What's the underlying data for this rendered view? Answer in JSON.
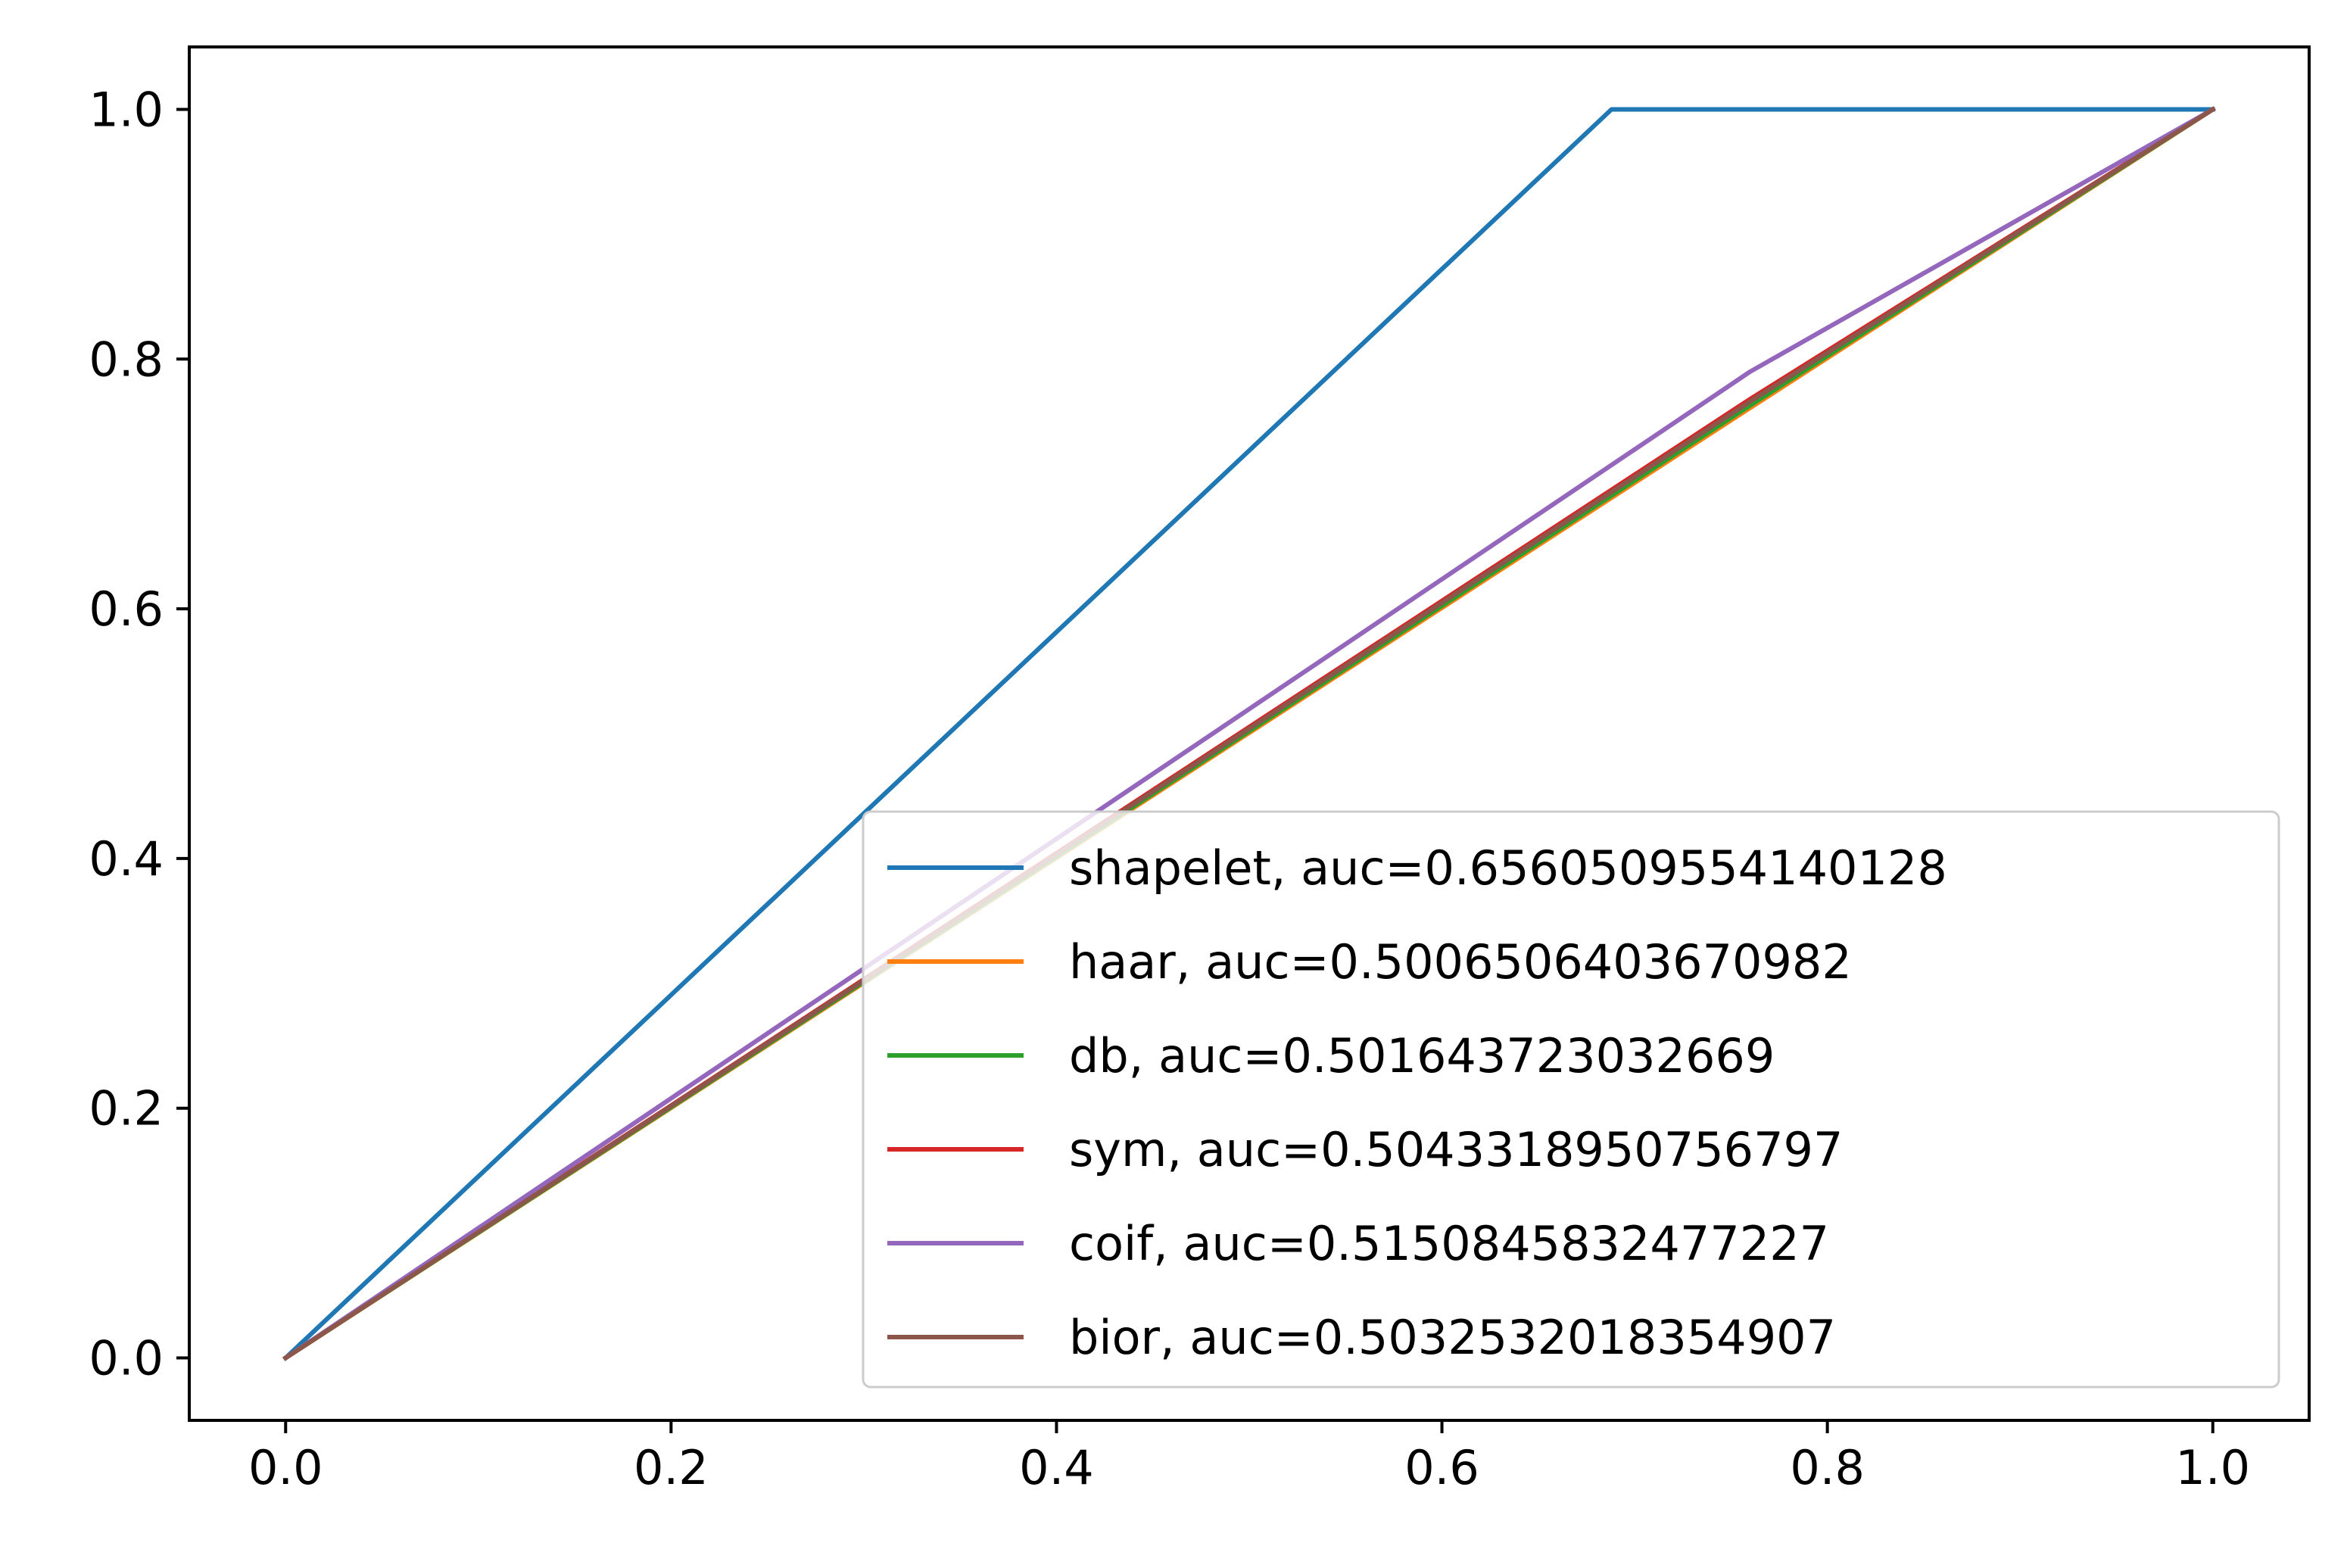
{
  "chart_data": {
    "type": "line",
    "title": "",
    "xlabel": "",
    "ylabel": "",
    "xlim": [
      -0.05,
      1.05
    ],
    "ylim": [
      -0.05,
      1.05
    ],
    "xticks": [
      {
        "value": 0.0,
        "label": "0.0"
      },
      {
        "value": 0.2,
        "label": "0.2"
      },
      {
        "value": 0.4,
        "label": "0.4"
      },
      {
        "value": 0.6,
        "label": "0.6"
      },
      {
        "value": 0.8,
        "label": "0.8"
      },
      {
        "value": 1.0,
        "label": "1.0"
      }
    ],
    "yticks": [
      {
        "value": 0.0,
        "label": "0.0"
      },
      {
        "value": 0.2,
        "label": "0.2"
      },
      {
        "value": 0.4,
        "label": "0.4"
      },
      {
        "value": 0.6,
        "label": "0.6"
      },
      {
        "value": 0.8,
        "label": "0.8"
      },
      {
        "value": 1.0,
        "label": "1.0"
      }
    ],
    "grid": false,
    "legend_position": "lower-right",
    "series": [
      {
        "name": "shapelet, auc=0.6560509554140128",
        "color": "#1f77b4",
        "x": [
          0.0,
          0.688,
          1.0
        ],
        "y": [
          0.0,
          1.0,
          1.0
        ]
      },
      {
        "name": "haar, auc=0.5006506403670982",
        "color": "#ff7f0e",
        "x": [
          0.0,
          0.76,
          1.0
        ],
        "y": [
          0.0,
          0.761,
          1.0
        ]
      },
      {
        "name": "db, auc=0.501643723032669",
        "color": "#2ca02c",
        "x": [
          0.0,
          0.76,
          1.0
        ],
        "y": [
          0.0,
          0.763,
          1.0
        ]
      },
      {
        "name": "sym, auc=0.5043318950756797",
        "color": "#d62728",
        "x": [
          0.0,
          0.76,
          1.0
        ],
        "y": [
          0.0,
          0.768,
          1.0
        ]
      },
      {
        "name": "coif, auc=0.5150845832477227",
        "color": "#9467bd",
        "x": [
          0.0,
          0.76,
          1.0
        ],
        "y": [
          0.0,
          0.79,
          1.0
        ]
      },
      {
        "name": "bior, auc=0.5032532018354907",
        "color": "#8c564b",
        "x": [
          0.0,
          0.76,
          1.0
        ],
        "y": [
          0.0,
          0.766,
          1.0
        ]
      }
    ]
  }
}
